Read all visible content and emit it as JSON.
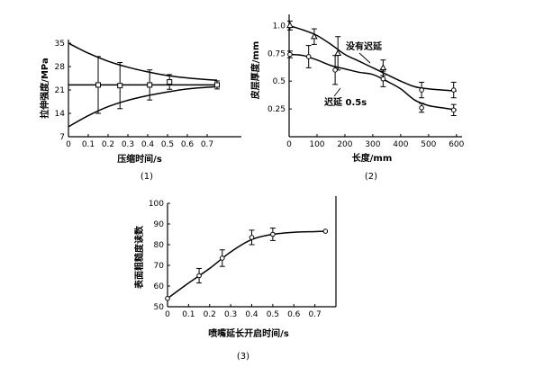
{
  "chart_data": [
    {
      "id": "c1",
      "type": "line",
      "caption": "(1)",
      "xlabel": "压缩时间/s",
      "ylabel": "拉伸强度/MPa",
      "xlim": [
        0,
        0.8
      ],
      "ylim": [
        7,
        35
      ],
      "xticks": [
        "0",
        "0.1",
        "0.2",
        "0.3",
        "0.4",
        "0.5",
        "0.6",
        "0.7"
      ],
      "yticks": [
        "7",
        "14",
        "21",
        "28",
        "35"
      ],
      "series": [
        {
          "x": [
            0,
            0.1,
            0.2,
            0.3,
            0.4,
            0.5,
            0.6,
            0.7,
            0.75
          ],
          "y": [
            35,
            32,
            29.6,
            27.8,
            26.4,
            25.3,
            24.6,
            24.1,
            23.9
          ],
          "style": "curve"
        },
        {
          "x": [
            0,
            0.1,
            0.2,
            0.3,
            0.4,
            0.5,
            0.6,
            0.7,
            0.75
          ],
          "y": [
            10,
            13.3,
            16,
            17.9,
            19.3,
            20.4,
            21.3,
            21.8,
            22
          ],
          "style": "curve"
        },
        {
          "x": [
            0,
            0.75
          ],
          "y": [
            22.5,
            22.5
          ],
          "style": "flat"
        }
      ],
      "points": [
        {
          "x": 0.15,
          "y": 22.5,
          "err": 8.5,
          "marker": "square"
        },
        {
          "x": 0.26,
          "y": 22.3,
          "err": 6.9,
          "marker": "square"
        },
        {
          "x": 0.41,
          "y": 22.5,
          "err": 4.5,
          "marker": "square"
        },
        {
          "x": 0.51,
          "y": 23.4,
          "err": 2.2,
          "marker": "square"
        },
        {
          "x": 0.75,
          "y": 22.5,
          "err": 1.2,
          "marker": "square"
        }
      ]
    },
    {
      "id": "c2",
      "type": "line",
      "caption": "(2)",
      "xlabel": "长度/mm",
      "ylabel": "皮层厚度/mm",
      "xlim": [
        0,
        620
      ],
      "ylim": [
        0,
        1.1
      ],
      "xticks": [
        "0",
        "100",
        "200",
        "300",
        "400",
        "500",
        "600"
      ],
      "yticks": [
        "0.25",
        "0.5",
        "0.75",
        "1.0"
      ],
      "series": [
        {
          "name": "没有迟延",
          "x": [
            0,
            50,
            100,
            150,
            200,
            250,
            300,
            350,
            400,
            450,
            500,
            550,
            600
          ],
          "y": [
            1.0,
            0.96,
            0.91,
            0.83,
            0.74,
            0.68,
            0.62,
            0.56,
            0.5,
            0.45,
            0.43,
            0.42,
            0.41
          ],
          "style": "curve"
        },
        {
          "name": "迟延 0.5s",
          "x": [
            0,
            50,
            100,
            150,
            200,
            250,
            300,
            350,
            400,
            450,
            500,
            550,
            600
          ],
          "y": [
            0.74,
            0.73,
            0.69,
            0.64,
            0.61,
            0.58,
            0.56,
            0.5,
            0.43,
            0.33,
            0.28,
            0.26,
            0.24
          ],
          "style": "curve"
        }
      ],
      "points": [
        {
          "x": 3,
          "y": 1.0,
          "err": 0.04,
          "marker": "triangle"
        },
        {
          "x": 90,
          "y": 0.9,
          "err": 0.07,
          "marker": "triangle"
        },
        {
          "x": 175,
          "y": 0.75,
          "err": 0.15,
          "marker": "triangle"
        },
        {
          "x": 337,
          "y": 0.62,
          "err": 0.07,
          "marker": "triangle"
        },
        {
          "x": 3,
          "y": 0.74,
          "err": 0.03,
          "marker": "circle"
        },
        {
          "x": 70,
          "y": 0.72,
          "err": 0.1,
          "marker": "circle"
        },
        {
          "x": 165,
          "y": 0.6,
          "err": 0.13,
          "marker": "circle"
        },
        {
          "x": 337,
          "y": 0.52,
          "err": 0.07,
          "marker": "circle"
        },
        {
          "x": 475,
          "y": 0.42,
          "err": 0.07,
          "marker": "circle"
        },
        {
          "x": 590,
          "y": 0.42,
          "err": 0.07,
          "marker": "circle"
        },
        {
          "x": 475,
          "y": 0.26,
          "err": 0.04,
          "marker": "circle"
        },
        {
          "x": 590,
          "y": 0.24,
          "err": 0.05,
          "marker": "circle"
        }
      ],
      "annotations": [
        "没有迟延",
        "迟延 0.5s"
      ]
    },
    {
      "id": "c3",
      "type": "line",
      "caption": "(3)",
      "xlabel": "喷嘴延长开启时间/s",
      "ylabel": "表面粗糙度读数",
      "xlim": [
        0,
        0.8
      ],
      "ylim": [
        50,
        100
      ],
      "xticks": [
        "0",
        "0.1",
        "0.2",
        "0.3",
        "0.4",
        "0.5",
        "0.6",
        "0.7"
      ],
      "yticks": [
        "50",
        "60",
        "70",
        "80",
        "90",
        "100"
      ],
      "series": [
        {
          "x": [
            0,
            0.1,
            0.2,
            0.3,
            0.4,
            0.5,
            0.6,
            0.7,
            0.75
          ],
          "y": [
            54,
            61.5,
            68.5,
            76.5,
            82.5,
            85,
            86,
            86.3,
            86.5
          ],
          "style": "curve"
        }
      ],
      "points": [
        {
          "x": 0,
          "y": 54,
          "err": 0,
          "marker": "circle"
        },
        {
          "x": 0.15,
          "y": 65,
          "err": 3.5,
          "marker": "circle"
        },
        {
          "x": 0.26,
          "y": 73.5,
          "err": 4,
          "marker": "circle"
        },
        {
          "x": 0.4,
          "y": 83.5,
          "err": 3.5,
          "marker": "circle"
        },
        {
          "x": 0.5,
          "y": 85,
          "err": 3,
          "marker": "circle"
        },
        {
          "x": 0.75,
          "y": 86.5,
          "err": 0,
          "marker": "circle"
        }
      ]
    }
  ]
}
